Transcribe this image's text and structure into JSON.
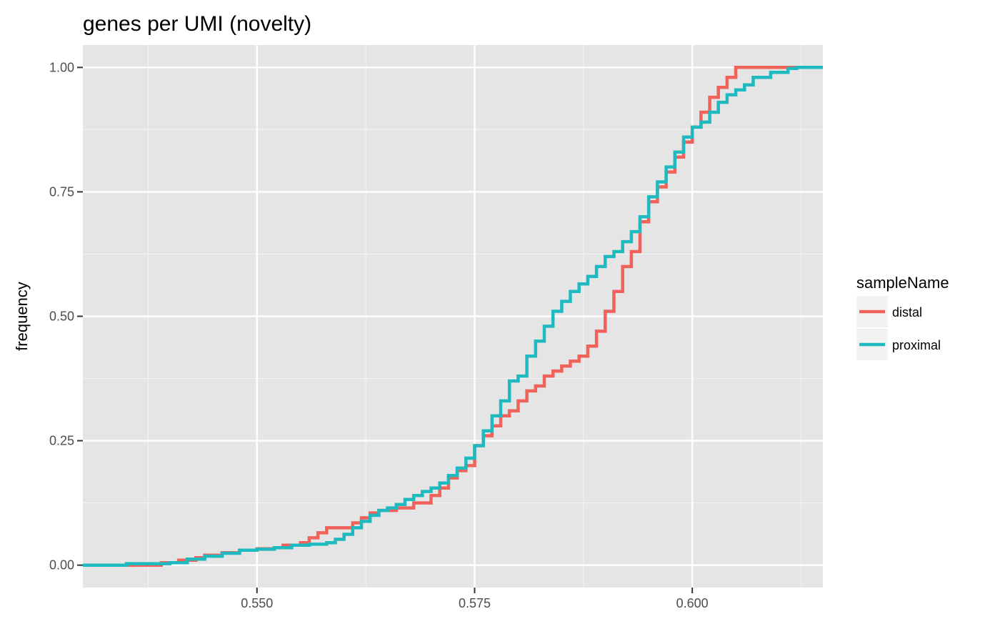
{
  "chart_data": {
    "type": "line",
    "title": "genes per UMI (novelty)",
    "xlabel": "",
    "ylabel": "frequency",
    "xlim": [
      0.53,
      0.615
    ],
    "ylim": [
      -0.045,
      1.045
    ],
    "x_ticks": [
      0.55,
      0.575,
      0.6
    ],
    "x_tick_labels": [
      "0.550",
      "0.575",
      "0.600"
    ],
    "x_minor_ticks": [
      0.5375,
      0.5625,
      0.5875,
      0.6125
    ],
    "y_ticks": [
      0.0,
      0.25,
      0.5,
      0.75,
      1.0
    ],
    "y_tick_labels": [
      "0.00",
      "0.25",
      "0.50",
      "0.75",
      "1.00"
    ],
    "y_minor_ticks": [
      0.125,
      0.375,
      0.625,
      0.875
    ],
    "grid": true,
    "panel_background": "#e5e5e5",
    "legend": {
      "title": "sampleName",
      "position": "right"
    },
    "series": [
      {
        "name": "distal",
        "color": "#f0625a",
        "points": [
          [
            0.53,
            0.0
          ],
          [
            0.534,
            0.0
          ],
          [
            0.538,
            0.0
          ],
          [
            0.539,
            0.005
          ],
          [
            0.541,
            0.01
          ],
          [
            0.543,
            0.015
          ],
          [
            0.544,
            0.02
          ],
          [
            0.546,
            0.025
          ],
          [
            0.548,
            0.03
          ],
          [
            0.55,
            0.033
          ],
          [
            0.552,
            0.035
          ],
          [
            0.553,
            0.04
          ],
          [
            0.555,
            0.045
          ],
          [
            0.556,
            0.055
          ],
          [
            0.557,
            0.065
          ],
          [
            0.558,
            0.075
          ],
          [
            0.56,
            0.075
          ],
          [
            0.561,
            0.085
          ],
          [
            0.562,
            0.095
          ],
          [
            0.563,
            0.105
          ],
          [
            0.564,
            0.11
          ],
          [
            0.566,
            0.115
          ],
          [
            0.568,
            0.125
          ],
          [
            0.57,
            0.14
          ],
          [
            0.571,
            0.155
          ],
          [
            0.572,
            0.175
          ],
          [
            0.573,
            0.19
          ],
          [
            0.574,
            0.2
          ],
          [
            0.575,
            0.24
          ],
          [
            0.576,
            0.26
          ],
          [
            0.577,
            0.28
          ],
          [
            0.578,
            0.3
          ],
          [
            0.579,
            0.31
          ],
          [
            0.58,
            0.33
          ],
          [
            0.581,
            0.35
          ],
          [
            0.582,
            0.36
          ],
          [
            0.583,
            0.38
          ],
          [
            0.584,
            0.39
          ],
          [
            0.585,
            0.4
          ],
          [
            0.586,
            0.41
          ],
          [
            0.587,
            0.42
          ],
          [
            0.588,
            0.44
          ],
          [
            0.589,
            0.47
          ],
          [
            0.59,
            0.51
          ],
          [
            0.591,
            0.55
          ],
          [
            0.592,
            0.6
          ],
          [
            0.593,
            0.63
          ],
          [
            0.594,
            0.69
          ],
          [
            0.595,
            0.73
          ],
          [
            0.596,
            0.76
          ],
          [
            0.597,
            0.79
          ],
          [
            0.598,
            0.82
          ],
          [
            0.599,
            0.85
          ],
          [
            0.6,
            0.88
          ],
          [
            0.601,
            0.91
          ],
          [
            0.602,
            0.94
          ],
          [
            0.603,
            0.96
          ],
          [
            0.604,
            0.98
          ],
          [
            0.605,
            1.0
          ],
          [
            0.615,
            1.0
          ]
        ]
      },
      {
        "name": "proximal",
        "color": "#1fbabf",
        "points": [
          [
            0.53,
            0.0
          ],
          [
            0.535,
            0.003
          ],
          [
            0.54,
            0.005
          ],
          [
            0.542,
            0.012
          ],
          [
            0.544,
            0.018
          ],
          [
            0.546,
            0.024
          ],
          [
            0.548,
            0.03
          ],
          [
            0.55,
            0.032
          ],
          [
            0.552,
            0.035
          ],
          [
            0.554,
            0.04
          ],
          [
            0.556,
            0.042
          ],
          [
            0.558,
            0.045
          ],
          [
            0.559,
            0.052
          ],
          [
            0.56,
            0.062
          ],
          [
            0.561,
            0.075
          ],
          [
            0.562,
            0.088
          ],
          [
            0.563,
            0.1
          ],
          [
            0.564,
            0.11
          ],
          [
            0.565,
            0.115
          ],
          [
            0.566,
            0.122
          ],
          [
            0.567,
            0.132
          ],
          [
            0.568,
            0.14
          ],
          [
            0.569,
            0.148
          ],
          [
            0.57,
            0.155
          ],
          [
            0.571,
            0.165
          ],
          [
            0.572,
            0.18
          ],
          [
            0.573,
            0.195
          ],
          [
            0.574,
            0.215
          ],
          [
            0.575,
            0.24
          ],
          [
            0.576,
            0.27
          ],
          [
            0.577,
            0.3
          ],
          [
            0.578,
            0.33
          ],
          [
            0.579,
            0.37
          ],
          [
            0.58,
            0.38
          ],
          [
            0.581,
            0.42
          ],
          [
            0.582,
            0.45
          ],
          [
            0.583,
            0.48
          ],
          [
            0.584,
            0.51
          ],
          [
            0.585,
            0.53
          ],
          [
            0.586,
            0.55
          ],
          [
            0.587,
            0.565
          ],
          [
            0.588,
            0.58
          ],
          [
            0.589,
            0.6
          ],
          [
            0.59,
            0.62
          ],
          [
            0.591,
            0.63
          ],
          [
            0.592,
            0.65
          ],
          [
            0.593,
            0.67
          ],
          [
            0.594,
            0.7
          ],
          [
            0.595,
            0.74
          ],
          [
            0.596,
            0.77
          ],
          [
            0.597,
            0.8
          ],
          [
            0.598,
            0.83
          ],
          [
            0.599,
            0.86
          ],
          [
            0.6,
            0.88
          ],
          [
            0.601,
            0.89
          ],
          [
            0.602,
            0.91
          ],
          [
            0.603,
            0.93
          ],
          [
            0.604,
            0.945
          ],
          [
            0.605,
            0.955
          ],
          [
            0.606,
            0.965
          ],
          [
            0.607,
            0.98
          ],
          [
            0.609,
            0.99
          ],
          [
            0.611,
            0.998
          ],
          [
            0.612,
            1.0
          ],
          [
            0.615,
            1.0
          ]
        ]
      }
    ]
  }
}
